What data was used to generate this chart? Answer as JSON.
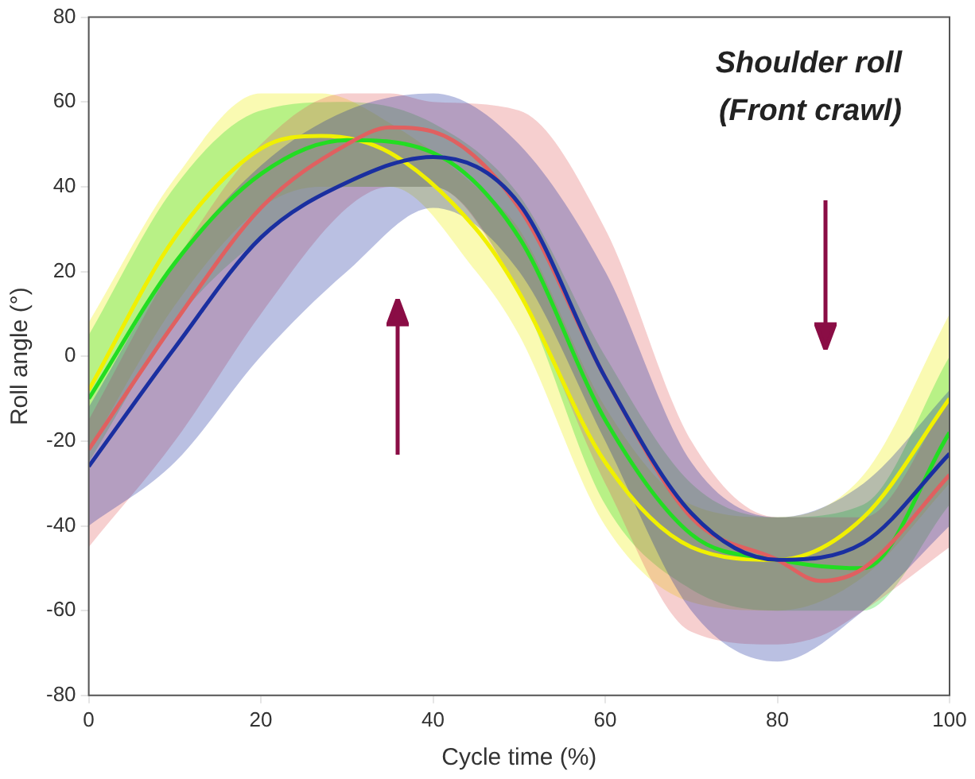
{
  "chart_data": {
    "type": "line",
    "xlabel": "Cycle time (%)",
    "ylabel": "Roll angle (°)",
    "annotations": [
      "Shoulder roll",
      "(Front crawl)"
    ],
    "xlim": [
      0,
      100
    ],
    "xticks": [
      0,
      20,
      40,
      60,
      80,
      100
    ],
    "ylim": [
      -80,
      80
    ],
    "yticks": [
      -80,
      -60,
      -40,
      -20,
      0,
      20,
      40,
      60,
      80
    ],
    "grid": false,
    "legend": false,
    "marker": "none",
    "line_style": "solid",
    "series": [
      {
        "color": "#1a2fa0",
        "x": [
          0,
          10,
          20,
          30,
          40,
          50,
          60,
          70,
          80,
          90,
          100
        ],
        "values": [
          -26,
          2,
          28,
          41,
          47,
          36,
          -5,
          -37,
          -48,
          -44,
          -23
        ],
        "lower": [
          -40,
          -25,
          0,
          20,
          35,
          20,
          -20,
          -60,
          -72,
          -60,
          -40
        ],
        "upper": [
          -12,
          22,
          45,
          58,
          62,
          50,
          20,
          -25,
          -38,
          -30,
          -8
        ]
      },
      {
        "color": "#e06060",
        "x": [
          0,
          10,
          20,
          30,
          35,
          40,
          50,
          60,
          70,
          80,
          85,
          90,
          100
        ],
        "values": [
          -22,
          8,
          35,
          50,
          54,
          53,
          35,
          -5,
          -38,
          -48,
          -53,
          -50,
          -28
        ],
        "lower": [
          -45,
          -20,
          10,
          35,
          40,
          40,
          15,
          -30,
          -65,
          -68,
          -66,
          -60,
          -45
        ],
        "upper": [
          -15,
          22,
          50,
          62,
          62,
          60,
          58,
          30,
          -20,
          -38,
          -38,
          -38,
          -10
        ]
      },
      {
        "color": "#22dd22",
        "x": [
          0,
          10,
          20,
          30,
          40,
          50,
          60,
          70,
          80,
          90,
          100
        ],
        "values": [
          -10,
          22,
          43,
          51,
          48,
          28,
          -15,
          -42,
          -48,
          -50,
          -18
        ],
        "lower": [
          -25,
          8,
          28,
          40,
          40,
          15,
          -35,
          -55,
          -60,
          -60,
          -35
        ],
        "upper": [
          5,
          40,
          58,
          60,
          55,
          38,
          0,
          -30,
          -38,
          -35,
          0
        ]
      },
      {
        "color": "#f0f000",
        "x": [
          0,
          10,
          20,
          27,
          35,
          45,
          50,
          60,
          70,
          80,
          90,
          100
        ],
        "values": [
          -8,
          28,
          49,
          52,
          48,
          30,
          15,
          -25,
          -45,
          -48,
          -38,
          -10
        ],
        "lower": [
          -22,
          12,
          35,
          40,
          40,
          20,
          5,
          -40,
          -58,
          -60,
          -52,
          -30
        ],
        "upper": [
          8,
          42,
          62,
          62,
          55,
          40,
          30,
          -12,
          -35,
          -38,
          -28,
          10
        ]
      }
    ]
  }
}
